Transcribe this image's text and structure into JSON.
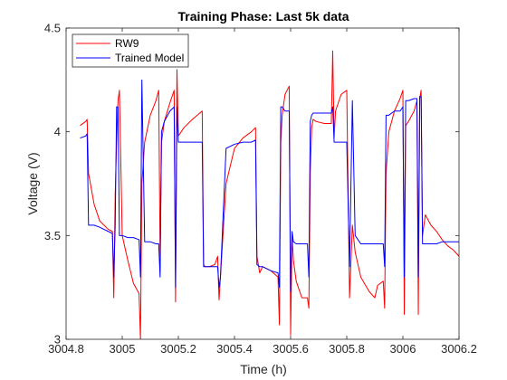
{
  "chart_data": {
    "type": "line",
    "title": "Training Phase: Last 5k data",
    "xlabel": "Time (h)",
    "ylabel": "Voltage (V)",
    "xlim": [
      3004.8,
      3006.2
    ],
    "ylim": [
      3,
      4.5
    ],
    "xticks": [
      3004.8,
      3005,
      3005.2,
      3005.4,
      3005.6,
      3005.8,
      3006,
      3006.2
    ],
    "xtick_labels": [
      "3004.8",
      "3005",
      "3005.2",
      "3005.4",
      "3005.6",
      "3005.8",
      "3006",
      "3006.2"
    ],
    "yticks": [
      3,
      3.5,
      4,
      4.5
    ],
    "ytick_labels": [
      "3",
      "3.5",
      "4",
      "4.5"
    ],
    "grid": false,
    "legend_position": "top-left",
    "series": [
      {
        "name": "RW9",
        "color": "#ff0000",
        "x": [
          3004.85,
          3004.87,
          3004.875,
          3004.88,
          3004.9,
          3004.92,
          3004.95,
          3004.965,
          3004.97,
          3004.975,
          3004.98,
          3004.985,
          3004.99,
          3005.0,
          3005.02,
          3005.04,
          3005.06,
          3005.065,
          3005.07,
          3005.08,
          3005.1,
          3005.12,
          3005.13,
          3005.135,
          3005.14,
          3005.15,
          3005.17,
          3005.185,
          3005.19,
          3005.195,
          3005.2,
          3005.21,
          3005.22,
          3005.25,
          3005.285,
          3005.29,
          3005.295,
          3005.31,
          3005.33,
          3005.34,
          3005.345,
          3005.35,
          3005.37,
          3005.4,
          3005.43,
          3005.46,
          3005.475,
          3005.48,
          3005.49,
          3005.5,
          3005.53,
          3005.555,
          3005.56,
          3005.565,
          3005.57,
          3005.58,
          3005.595,
          3005.6,
          3005.605,
          3005.61,
          3005.62,
          3005.64,
          3005.66,
          3005.665,
          3005.67,
          3005.675,
          3005.68,
          3005.69,
          3005.72,
          3005.745,
          3005.75,
          3005.755,
          3005.76,
          3005.78,
          3005.8,
          3005.81,
          3005.82,
          3005.83,
          3005.85,
          3005.88,
          3005.9,
          3005.91,
          3005.93,
          3005.935,
          3005.94,
          3005.95,
          3005.97,
          3005.99,
          3006.0,
          3006.005,
          3006.01,
          3006.02,
          3006.04,
          3006.05,
          3006.055,
          3006.06,
          3006.065,
          3006.07,
          3006.08,
          3006.1,
          3006.12,
          3006.14,
          3006.16,
          3006.18,
          3006.2
        ],
        "y": [
          4.03,
          4.05,
          4.06,
          3.8,
          3.65,
          3.57,
          3.53,
          3.52,
          3.2,
          3.7,
          3.95,
          4.15,
          4.2,
          3.5,
          3.38,
          3.27,
          3.22,
          3.0,
          3.75,
          3.95,
          4.08,
          4.15,
          4.2,
          3.4,
          3.95,
          4.05,
          4.14,
          4.2,
          3.18,
          4.3,
          3.98,
          4.0,
          4.02,
          4.06,
          4.1,
          3.36,
          3.35,
          3.35,
          3.36,
          3.4,
          3.19,
          3.3,
          3.75,
          3.92,
          3.97,
          4.0,
          4.02,
          3.4,
          3.32,
          3.35,
          3.33,
          3.3,
          3.07,
          3.95,
          4.08,
          4.18,
          4.22,
          3.02,
          3.5,
          3.38,
          3.28,
          3.2,
          3.2,
          3.15,
          3.8,
          4.02,
          4.06,
          4.05,
          4.04,
          4.04,
          4.39,
          3.97,
          4.1,
          4.18,
          4.2,
          3.2,
          3.55,
          3.42,
          3.3,
          3.23,
          3.2,
          3.26,
          3.28,
          3.15,
          3.8,
          4.0,
          4.1,
          4.16,
          4.2,
          3.12,
          4.03,
          4.05,
          4.1,
          4.15,
          3.12,
          4.16,
          4.2,
          3.5,
          3.6,
          3.55,
          3.52,
          3.48,
          3.45,
          3.43,
          3.4
        ]
      },
      {
        "name": "Trained Model",
        "color": "#0000ff",
        "x": [
          3004.85,
          3004.87,
          3004.875,
          3004.88,
          3004.9,
          3004.92,
          3004.95,
          3004.965,
          3004.97,
          3004.975,
          3004.98,
          3004.985,
          3004.99,
          3005.0,
          3005.02,
          3005.04,
          3005.06,
          3005.065,
          3005.07,
          3005.08,
          3005.1,
          3005.12,
          3005.13,
          3005.135,
          3005.14,
          3005.15,
          3005.17,
          3005.185,
          3005.19,
          3005.195,
          3005.2,
          3005.21,
          3005.22,
          3005.25,
          3005.285,
          3005.29,
          3005.295,
          3005.31,
          3005.33,
          3005.34,
          3005.345,
          3005.35,
          3005.37,
          3005.4,
          3005.43,
          3005.46,
          3005.475,
          3005.48,
          3005.49,
          3005.5,
          3005.53,
          3005.555,
          3005.56,
          3005.565,
          3005.57,
          3005.58,
          3005.595,
          3005.6,
          3005.605,
          3005.61,
          3005.62,
          3005.64,
          3005.66,
          3005.665,
          3005.67,
          3005.675,
          3005.68,
          3005.69,
          3005.72,
          3005.745,
          3005.75,
          3005.755,
          3005.76,
          3005.78,
          3005.8,
          3005.81,
          3005.82,
          3005.83,
          3005.85,
          3005.88,
          3005.9,
          3005.91,
          3005.93,
          3005.935,
          3005.94,
          3005.95,
          3005.97,
          3005.99,
          3006.0,
          3006.005,
          3006.01,
          3006.02,
          3006.04,
          3006.05,
          3006.055,
          3006.06,
          3006.065,
          3006.07,
          3006.08,
          3006.1,
          3006.12,
          3006.14,
          3006.16,
          3006.18,
          3006.2
        ],
        "y": [
          3.97,
          3.98,
          3.99,
          3.55,
          3.55,
          3.54,
          3.52,
          3.51,
          3.3,
          3.55,
          4.12,
          4.12,
          3.5,
          3.5,
          3.49,
          3.49,
          3.48,
          3.3,
          4.25,
          3.47,
          3.47,
          3.46,
          3.46,
          3.3,
          4.0,
          4.05,
          4.1,
          4.12,
          3.25,
          4.12,
          3.95,
          3.95,
          3.95,
          3.95,
          3.95,
          3.35,
          3.35,
          3.35,
          3.35,
          3.35,
          3.25,
          3.3,
          3.92,
          3.94,
          3.95,
          3.95,
          3.96,
          3.36,
          3.35,
          3.35,
          3.33,
          3.32,
          3.25,
          4.12,
          4.12,
          4.1,
          4.1,
          3.23,
          3.52,
          3.47,
          3.46,
          3.46,
          3.46,
          3.3,
          4.05,
          4.08,
          4.09,
          4.09,
          4.09,
          4.09,
          4.12,
          3.95,
          3.95,
          3.95,
          3.95,
          3.35,
          4.15,
          3.5,
          3.46,
          3.46,
          3.46,
          3.46,
          3.46,
          3.35,
          4.08,
          4.08,
          4.1,
          4.1,
          4.12,
          3.3,
          4.15,
          4.15,
          4.16,
          4.16,
          3.3,
          4.17,
          4.17,
          3.46,
          3.46,
          3.46,
          3.46,
          3.47,
          3.47,
          3.47,
          3.47
        ]
      }
    ]
  }
}
